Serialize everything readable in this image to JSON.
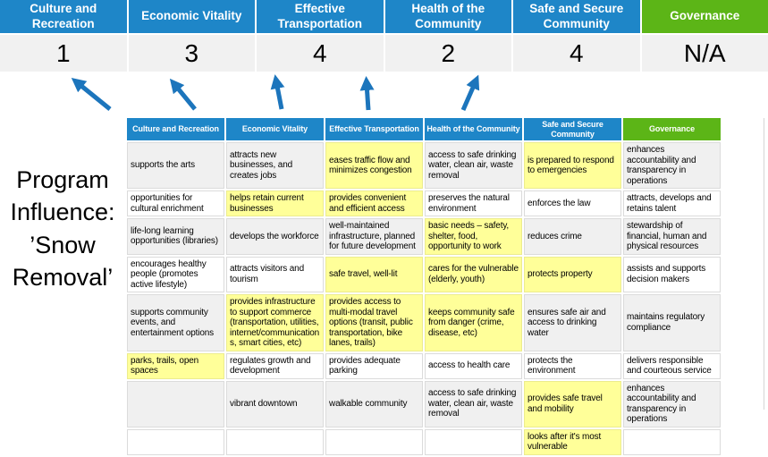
{
  "colors": {
    "header_blue": "#1E86C8",
    "header_green": "#5CB517",
    "score_bg": "#F1F1F1",
    "band_gray": "#F0F0F0",
    "highlight_yellow": "#FFFF99",
    "arrow_blue": "#1C75BC",
    "border_gray": "#DBDBDB"
  },
  "summary": {
    "columns": [
      {
        "label": "Culture and Recreation",
        "score": "1",
        "theme": "blue"
      },
      {
        "label": "Economic Vitality",
        "score": "3",
        "theme": "blue"
      },
      {
        "label": "Effective Transportation",
        "score": "4",
        "theme": "blue"
      },
      {
        "label": "Health of the Community",
        "score": "2",
        "theme": "blue"
      },
      {
        "label": "Safe and Secure Community",
        "score": "4",
        "theme": "blue"
      },
      {
        "label": "Governance",
        "score": "N/A",
        "theme": "green"
      }
    ]
  },
  "program": {
    "label": "Program Influence: ’Snow Removal’"
  },
  "matrix": {
    "headers": [
      {
        "label": "Culture and Recreation",
        "theme": "blue"
      },
      {
        "label": "Economic Vitality",
        "theme": "blue"
      },
      {
        "label": "Effective Transportation",
        "theme": "blue"
      },
      {
        "label": "Health of the Community",
        "theme": "blue"
      },
      {
        "label": "Safe and Secure Community",
        "theme": "blue"
      },
      {
        "label": "Governance",
        "theme": "green"
      }
    ],
    "rows": [
      {
        "cells": [
          {
            "text": "supports the arts",
            "hl": false
          },
          {
            "text": "attracts new businesses, and creates jobs",
            "hl": false
          },
          {
            "text": "eases traffic flow and minimizes congestion",
            "hl": true
          },
          {
            "text": "access to safe drinking water, clean air, waste removal",
            "hl": false
          },
          {
            "text": "is prepared to respond to emergencies",
            "hl": true
          },
          {
            "text": "enhances accountability and transparency in operations",
            "hl": false
          }
        ]
      },
      {
        "cells": [
          {
            "text": "opportunities for cultural enrichment",
            "hl": false
          },
          {
            "text": "helps retain current businesses",
            "hl": true
          },
          {
            "text": "provides convenient and efficient access",
            "hl": true
          },
          {
            "text": "preserves the natural environment",
            "hl": false
          },
          {
            "text": "enforces the law",
            "hl": false
          },
          {
            "text": "attracts, develops and retains talent",
            "hl": false
          }
        ]
      },
      {
        "cells": [
          {
            "text": "life-long learning opportunities (libraries)",
            "hl": false
          },
          {
            "text": "develops the workforce",
            "hl": false
          },
          {
            "text": "well-maintained infrastructure, planned for future development",
            "hl": false
          },
          {
            "text": "basic needs – safety, shelter, food, opportunity to work",
            "hl": true
          },
          {
            "text": "reduces crime",
            "hl": false
          },
          {
            "text": "stewardship of financial, human and physical resources",
            "hl": false
          }
        ]
      },
      {
        "cells": [
          {
            "text": "encourages healthy people (promotes active lifestyle)",
            "hl": false
          },
          {
            "text": "attracts visitors and tourism",
            "hl": false
          },
          {
            "text": "safe travel, well-lit",
            "hl": true
          },
          {
            "text": "cares for the vulnerable (elderly, youth)",
            "hl": true
          },
          {
            "text": "protects property",
            "hl": true
          },
          {
            "text": "assists and supports decision makers",
            "hl": false
          }
        ]
      },
      {
        "cells": [
          {
            "text": "supports community events, and entertainment options",
            "hl": false
          },
          {
            "text": "provides infrastructure to support commerce (transportation, utilities, internet/communications, smart cities, etc)",
            "hl": true
          },
          {
            "text": "provides access to multi-modal travel options (transit, public transportation, bike lanes, trails)",
            "hl": true
          },
          {
            "text": "keeps community safe from danger (crime, disease, etc)",
            "hl": true
          },
          {
            "text": "ensures safe air and access to drinking water",
            "hl": false
          },
          {
            "text": "maintains regulatory compliance",
            "hl": false
          }
        ]
      },
      {
        "cells": [
          {
            "text": "parks, trails, open spaces",
            "hl": true
          },
          {
            "text": "regulates growth and development",
            "hl": false
          },
          {
            "text": "provides adequate parking",
            "hl": false
          },
          {
            "text": "access to health care",
            "hl": false
          },
          {
            "text": "protects the environment",
            "hl": false
          },
          {
            "text": "delivers responsible and courteous service",
            "hl": false
          }
        ]
      },
      {
        "cells": [
          {
            "text": "",
            "hl": false
          },
          {
            "text": "vibrant downtown",
            "hl": false
          },
          {
            "text": "walkable community",
            "hl": false
          },
          {
            "text": "access to safe drinking water, clean air, waste removal",
            "hl": false
          },
          {
            "text": "provides safe travel and mobility",
            "hl": true
          },
          {
            "text": "enhances accountability and transparency in operations",
            "hl": false
          }
        ]
      },
      {
        "cells": [
          {
            "text": "",
            "hl": false
          },
          {
            "text": "",
            "hl": false
          },
          {
            "text": "",
            "hl": false
          },
          {
            "text": "",
            "hl": false
          },
          {
            "text": "looks after it's most vulnerable",
            "hl": true
          },
          {
            "text": "",
            "hl": false
          }
        ]
      }
    ]
  }
}
